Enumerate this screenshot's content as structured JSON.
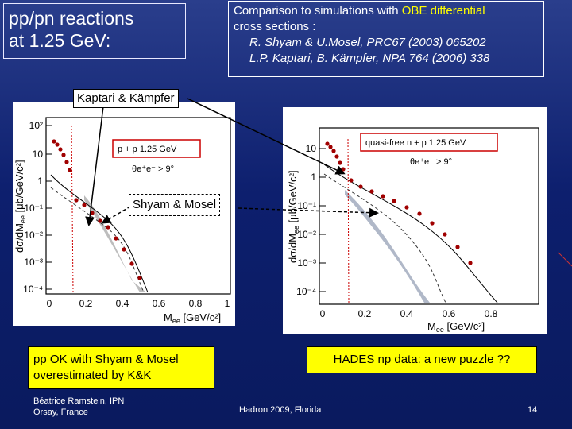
{
  "title": {
    "line1": "pp/pn reactions",
    "line2": "at 1.25 GeV:"
  },
  "references": {
    "line1_prefix": "Comparison to simulations with ",
    "line1_highlight": "OBE differential",
    "line2": "cross sections :",
    "ref1": "R. Shyam & U.Mosel, PRC67 (2003) 065202",
    "ref2": "L.P. Kaptari, B. Kämpfer, NPA 764 (2006) 338"
  },
  "labels": {
    "kaptari": "Kaptari & Kämpfer",
    "shyam": "Shyam & Mosel"
  },
  "left_plot": {
    "y_ticks": [
      "10²",
      "10",
      "1",
      "10⁻¹",
      "10⁻²",
      "10⁻³",
      "10⁻⁴"
    ],
    "x_ticks": [
      "0",
      "0.2",
      "0.4",
      "0.6",
      "0.8",
      "1"
    ],
    "ylabel_part1": "dσ/dM",
    "ylabel_sub": "ee",
    "ylabel_part2": " [μb/GeV/c²]",
    "xlabel_part1": "M",
    "xlabel_sub": "ee",
    "xlabel_part2": " [GeV/c²]",
    "legend_line1": "p + p  1.25 GeV",
    "legend_line2": "θe⁺e⁻ > 9°"
  },
  "right_plot": {
    "y_ticks": [
      "10",
      "1",
      "10⁻¹",
      "10⁻²",
      "10⁻³",
      "10⁻⁴"
    ],
    "x_ticks": [
      "0",
      "0.2",
      "0.4",
      "0.6",
      "0.8"
    ],
    "ylabel_part1": "dσ/dM",
    "ylabel_sub": "ee",
    "ylabel_part2": " [μb/GeV/c²]",
    "xlabel_part1": "M",
    "xlabel_sub": "ee",
    "xlabel_part2": " [GeV/c²]",
    "legend_line1": "quasi-free n + p  1.25 GeV",
    "legend_line2": "θe⁺e⁻ > 9°"
  },
  "notes": {
    "left_line1": "pp OK with Shyam & Mosel",
    "left_line2": "overestimated by K&K",
    "right": "HADES np data: a new puzzle ??"
  },
  "footer": {
    "author_line1": "Béatrice Ramstein, IPN",
    "author_line2": "Orsay, France",
    "conference": "Hadron  2009, Florida",
    "page": "14"
  },
  "colors": {
    "background_top": "#2a3e8c",
    "background_bottom": "#0a1a5e",
    "highlight": "#ffff00",
    "legend_border": "#cc0000",
    "data_points": "#a00000"
  }
}
